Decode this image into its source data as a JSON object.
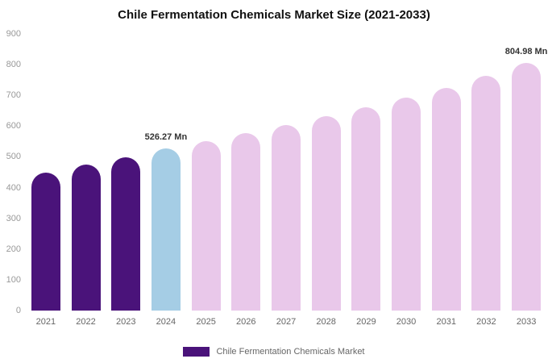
{
  "chart": {
    "title": "Chile Fermentation Chemicals Market Size (2021-2033)"
  },
  "legend": {
    "label": "Chile Fermentation Chemicals Market"
  },
  "colors": {
    "dark_purple": "#4a137a",
    "light_blue": "#a5cde5",
    "light_pink": "#e9c8ea",
    "legend_swatch": "#4a137a"
  },
  "chart_data": {
    "type": "bar",
    "title": "Chile Fermentation Chemicals Market Size (2021-2033)",
    "categories": [
      "2021",
      "2022",
      "2023",
      "2024",
      "2025",
      "2026",
      "2027",
      "2028",
      "2029",
      "2030",
      "2031",
      "2032",
      "2033"
    ],
    "values": [
      449,
      474,
      499,
      526.27,
      551,
      577,
      604,
      632,
      661,
      692,
      724,
      763,
      804.98
    ],
    "bar_colors": [
      "#4a137a",
      "#4a137a",
      "#4a137a",
      "#a5cde5",
      "#e9c8ea",
      "#e9c8ea",
      "#e9c8ea",
      "#e9c8ea",
      "#e9c8ea",
      "#e9c8ea",
      "#e9c8ea",
      "#e9c8ea",
      "#e9c8ea"
    ],
    "annotations": [
      {
        "index": 3,
        "text": "526.27 Mn"
      },
      {
        "index": 12,
        "text": "804.98 Mn"
      }
    ],
    "xlabel": "",
    "ylabel": "",
    "ylim": [
      0,
      900
    ],
    "yticks": [
      0,
      100,
      200,
      300,
      400,
      500,
      600,
      700,
      800,
      900
    ],
    "grid": false,
    "legend_position": "bottom"
  }
}
